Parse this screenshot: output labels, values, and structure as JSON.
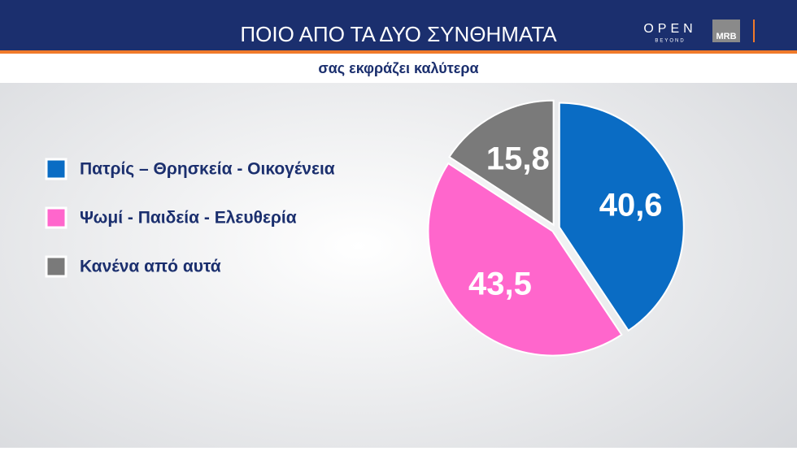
{
  "header": {
    "title": "ΠΟΙΟ ΑΠΟ ΤΑ ΔΥΟ ΣΥΝΘΗΜΑΤΑ",
    "subtitle": "σας εκφράζει καλύτερα",
    "logo": "OPEN",
    "logo_sub": "BEYOND",
    "pollster": "MRB"
  },
  "chart_data": {
    "type": "pie",
    "categories": [
      "Πατρίς – Θρησκεία - Οικογένεια",
      "Ψωμί - Παιδεία - Ελευθερία",
      "Κανένα από αυτά"
    ],
    "values": [
      40.6,
      43.5,
      15.8
    ],
    "value_labels": [
      "40,6",
      "43,5",
      "15,8"
    ],
    "colors": [
      "#0a6cc4",
      "#ff66cc",
      "#7a7a7a"
    ]
  }
}
